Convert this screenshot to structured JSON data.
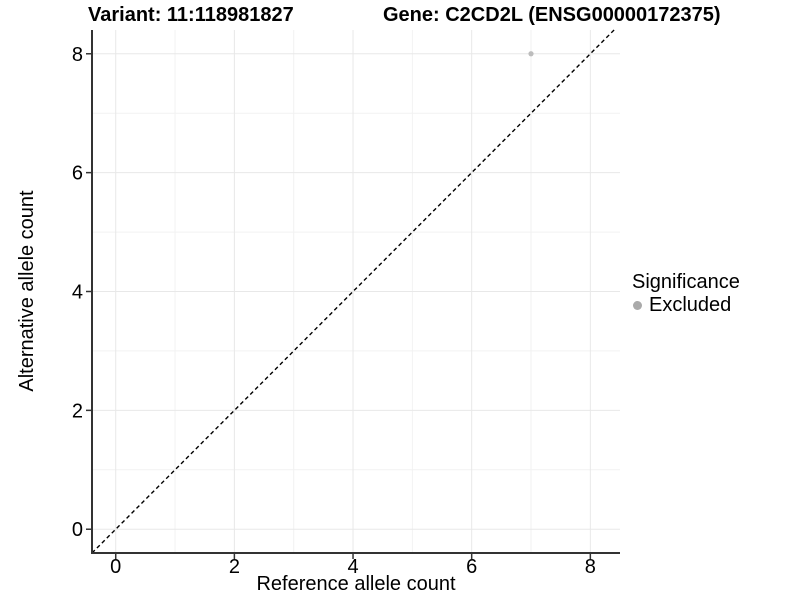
{
  "titles": {
    "variant": "Variant: 11:118981827",
    "gene": "Gene: C2CD2L (ENSG00000172375)"
  },
  "legend": {
    "title": "Significance",
    "items": [
      {
        "label": "Excluded",
        "color": "#aaaaaa"
      }
    ]
  },
  "chart_data": {
    "type": "scatter",
    "xlabel": "Reference allele count",
    "ylabel": "Alternative allele count",
    "xlim": [
      -0.4,
      8.5
    ],
    "ylim": [
      -0.4,
      8.4
    ],
    "x_ticks": [
      0,
      2,
      4,
      6,
      8
    ],
    "y_ticks": [
      0,
      2,
      4,
      6,
      8
    ],
    "x_minor_ticks": [
      1,
      3,
      5,
      7
    ],
    "y_minor_ticks": [
      1,
      3,
      5,
      7
    ],
    "grid": true,
    "legend_position": "right",
    "series": [
      {
        "name": "Excluded",
        "color": "#bdbdbd",
        "points": [
          {
            "x": 7,
            "y": 8
          }
        ]
      }
    ],
    "reference_line": {
      "slope": 1,
      "intercept": 0,
      "style": "dashed",
      "color": "#000000"
    }
  },
  "colors": {
    "background": "#ffffff",
    "grid_major": "#e8e8e8",
    "grid_minor": "#f2f2f2",
    "axis": "#333333",
    "text": "#000000"
  }
}
